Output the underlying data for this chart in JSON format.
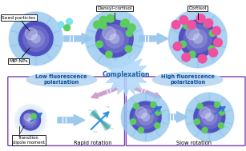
{
  "bg_color": "#ffffff",
  "box_edge_color": "#7b3fb5",
  "arrow_blue": "#9ec8ec",
  "arrow_pink": "#d090c8",
  "dot_green": "#5ccc5c",
  "dot_pink": "#f050a0",
  "dot_cyan": "#80e0f0",
  "sphere_blue": "#6060c8",
  "sphere_mid": "#8080d0",
  "sphere_glow": "#b0b8e8",
  "sphere_ring": "#80c8f0",
  "ellipse_fill": "#b8d8f0",
  "starburst_fill": "#b0d8f8",
  "labels": {
    "seed_particles": "Seed particles",
    "mip_nps": "MIP-NPs",
    "dansyl_cortisol": "Dansyl-cortisol",
    "cortisol": "Cortisol",
    "complexation": "Complexation",
    "low_fp": "Low fluorescence\npolarization",
    "high_fp": "High fluorescence\npolarization",
    "transition": "Transition\ndipole moment",
    "rapid": "Rapid rotation",
    "slow": "Slow rotation"
  }
}
